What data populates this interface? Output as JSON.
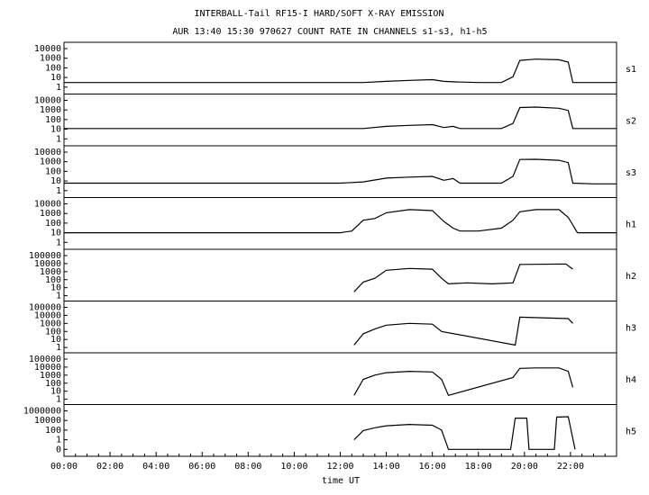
{
  "title_line1": "INTERBALL-Tail RF15-I HARD/SOFT X-RAY EMISSION",
  "title_line2": "AUR 13:40 15:30 970627  COUNT RATE IN CHANNELS s1-s3, h1-h5",
  "chart_data": {
    "type": "line",
    "xlabel": "time UT",
    "x_unit": "hours UT",
    "xlim": [
      0,
      24
    ],
    "x_ticks": [
      "00:00",
      "02:00",
      "04:00",
      "06:00",
      "08:00",
      "10:00",
      "12:00",
      "14:00",
      "16:00",
      "18:00",
      "20:00",
      "22:00"
    ],
    "y_scale": "log",
    "panels": [
      {
        "name": "s1",
        "y_ticks": [
          "10000",
          "1000",
          "100",
          "10",
          "1"
        ],
        "series": [
          [
            0,
            3
          ],
          [
            1,
            3
          ],
          [
            2,
            3
          ],
          [
            3,
            3
          ],
          [
            4,
            3
          ],
          [
            5,
            3
          ],
          [
            6,
            3
          ],
          [
            7,
            3
          ],
          [
            8,
            3
          ],
          [
            9,
            3
          ],
          [
            10,
            3
          ],
          [
            11,
            3
          ],
          [
            12,
            3
          ],
          [
            13,
            3
          ],
          [
            14,
            4
          ],
          [
            15,
            5
          ],
          [
            16,
            6
          ],
          [
            16.5,
            4
          ],
          [
            17,
            3.5
          ],
          [
            18,
            3
          ],
          [
            19,
            3
          ],
          [
            19.5,
            12
          ],
          [
            19.8,
            600
          ],
          [
            20.5,
            800
          ],
          [
            21.5,
            700
          ],
          [
            21.9,
            400
          ],
          [
            22.1,
            3
          ],
          [
            23,
            3
          ],
          [
            24,
            3
          ]
        ]
      },
      {
        "name": "s2",
        "y_ticks": [
          "10000",
          "1000",
          "100",
          "10",
          "1"
        ],
        "series": [
          [
            0,
            12
          ],
          [
            1,
            12
          ],
          [
            2,
            12
          ],
          [
            3,
            12
          ],
          [
            4,
            12
          ],
          [
            5,
            12
          ],
          [
            6,
            12
          ],
          [
            7,
            12
          ],
          [
            8,
            12
          ],
          [
            9,
            12
          ],
          [
            10,
            12
          ],
          [
            11,
            12
          ],
          [
            12,
            12
          ],
          [
            13,
            12
          ],
          [
            14,
            20
          ],
          [
            15,
            25
          ],
          [
            16,
            30
          ],
          [
            16.5,
            15
          ],
          [
            16.9,
            20
          ],
          [
            17.2,
            12
          ],
          [
            18,
            12
          ],
          [
            19,
            12
          ],
          [
            19.5,
            40
          ],
          [
            19.8,
            1800
          ],
          [
            20.5,
            2000
          ],
          [
            21.5,
            1500
          ],
          [
            21.9,
            900
          ],
          [
            22.1,
            12
          ],
          [
            23,
            12
          ],
          [
            24,
            12
          ]
        ]
      },
      {
        "name": "s3",
        "y_ticks": [
          "10000",
          "1000",
          "100",
          "10",
          "1"
        ],
        "series": [
          [
            0,
            6
          ],
          [
            1,
            6
          ],
          [
            2,
            6
          ],
          [
            3,
            6
          ],
          [
            4,
            6
          ],
          [
            5,
            6
          ],
          [
            6,
            6
          ],
          [
            7,
            6
          ],
          [
            8,
            6
          ],
          [
            9,
            6
          ],
          [
            10,
            6
          ],
          [
            11,
            6
          ],
          [
            12,
            6
          ],
          [
            13,
            8
          ],
          [
            14,
            20
          ],
          [
            15,
            25
          ],
          [
            16,
            30
          ],
          [
            16.5,
            12
          ],
          [
            16.9,
            18
          ],
          [
            17.2,
            6
          ],
          [
            18,
            6
          ],
          [
            19,
            6
          ],
          [
            19.5,
            30
          ],
          [
            19.8,
            1700
          ],
          [
            20.5,
            1800
          ],
          [
            21.5,
            1400
          ],
          [
            21.9,
            800
          ],
          [
            22.1,
            6
          ],
          [
            23,
            5
          ],
          [
            24,
            5
          ]
        ]
      },
      {
        "name": "h1",
        "y_ticks": [
          "10000",
          "1000",
          "100",
          "10",
          "1"
        ],
        "series": [
          [
            0,
            10
          ],
          [
            2,
            10
          ],
          [
            4,
            10
          ],
          [
            6,
            10
          ],
          [
            8,
            10
          ],
          [
            10,
            10
          ],
          [
            11,
            10
          ],
          [
            12,
            10
          ],
          [
            12.5,
            15
          ],
          [
            13,
            200
          ],
          [
            13.5,
            300
          ],
          [
            14,
            1200
          ],
          [
            15,
            2500
          ],
          [
            16,
            2000
          ],
          [
            16.5,
            150
          ],
          [
            16.9,
            30
          ],
          [
            17.2,
            15
          ],
          [
            18,
            15
          ],
          [
            19,
            30
          ],
          [
            19.5,
            200
          ],
          [
            19.8,
            1500
          ],
          [
            20.5,
            2500
          ],
          [
            21.5,
            2500
          ],
          [
            21.9,
            400
          ],
          [
            22.3,
            10
          ],
          [
            23,
            10
          ],
          [
            24,
            10
          ]
        ]
      },
      {
        "name": "h2",
        "y_ticks": [
          "100000",
          "10000",
          "1000",
          "100",
          "10",
          "1"
        ],
        "series": [
          [
            12.6,
            3
          ],
          [
            13,
            50
          ],
          [
            13.5,
            150
          ],
          [
            14,
            1500
          ],
          [
            15,
            2500
          ],
          [
            16,
            2000
          ],
          [
            16.4,
            150
          ],
          [
            16.7,
            30
          ],
          [
            17.5,
            40
          ],
          [
            18.6,
            30
          ],
          [
            19.5,
            40
          ],
          [
            19.8,
            8000
          ],
          [
            20,
            8000
          ],
          [
            21.8,
            9000
          ],
          [
            22.1,
            2000
          ]
        ]
      },
      {
        "name": "h3",
        "y_ticks": [
          "100000",
          "10000",
          "1000",
          "100",
          "10",
          "1"
        ],
        "series": [
          [
            12.6,
            2
          ],
          [
            13,
            50
          ],
          [
            13.5,
            200
          ],
          [
            14,
            600
          ],
          [
            15,
            1000
          ],
          [
            16,
            800
          ],
          [
            16.4,
            100
          ],
          [
            19.6,
            2
          ],
          [
            19.8,
            6000
          ],
          [
            21.9,
            4000
          ],
          [
            22.1,
            1000
          ]
        ]
      },
      {
        "name": "h4",
        "y_ticks": [
          "100000",
          "10000",
          "1000",
          "100",
          "10",
          "1"
        ],
        "series": [
          [
            12.6,
            3
          ],
          [
            13,
            300
          ],
          [
            13.5,
            1000
          ],
          [
            14,
            2000
          ],
          [
            15,
            3000
          ],
          [
            16,
            2500
          ],
          [
            16.4,
            300
          ],
          [
            16.7,
            3
          ],
          [
            19.5,
            500
          ],
          [
            19.8,
            7000
          ],
          [
            20.5,
            8000
          ],
          [
            21.5,
            8000
          ],
          [
            21.9,
            3000
          ],
          [
            22.1,
            30
          ]
        ]
      },
      {
        "name": "h5",
        "y_ticks": [
          "1000000",
          "10000",
          "100",
          "1",
          "0"
        ],
        "series": [
          [
            12.6,
            1
          ],
          [
            13,
            80
          ],
          [
            13.5,
            300
          ],
          [
            14,
            800
          ],
          [
            15,
            1500
          ],
          [
            16,
            1000
          ],
          [
            16.4,
            100
          ],
          [
            16.7,
            0
          ],
          [
            19.4,
            0
          ],
          [
            19.6,
            30000
          ],
          [
            20.1,
            30000
          ],
          [
            20.2,
            0
          ],
          [
            21.3,
            0
          ],
          [
            21.4,
            50000
          ],
          [
            21.9,
            60000
          ],
          [
            22.2,
            0
          ]
        ]
      }
    ]
  }
}
